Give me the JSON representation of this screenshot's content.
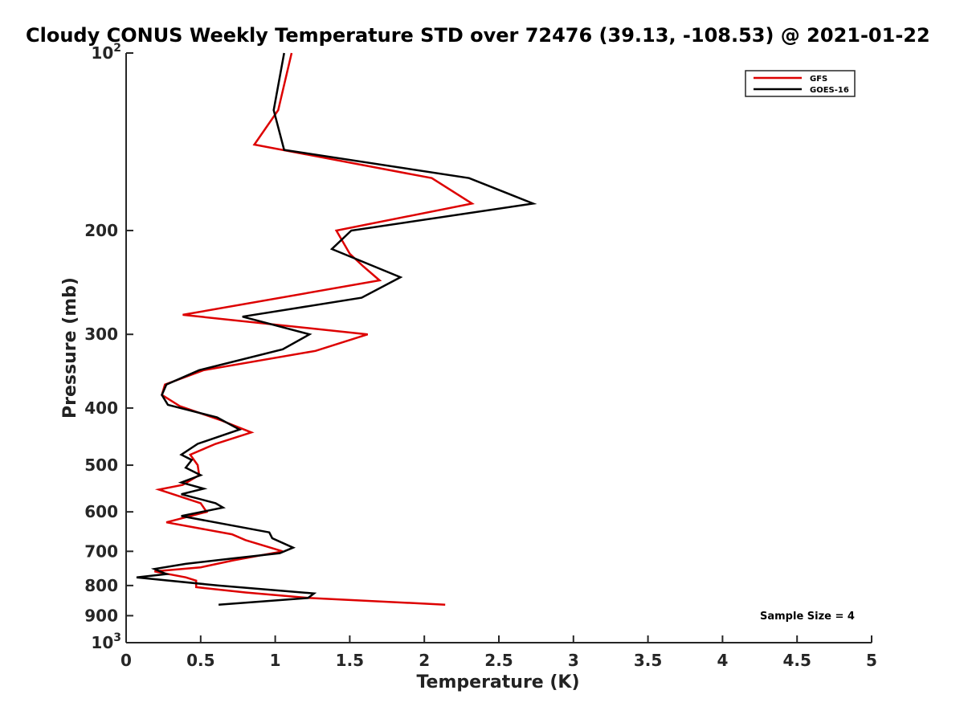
{
  "chart_data": {
    "type": "line",
    "title": "Cloudy CONUS Weekly Temperature STD over 72476 (39.13, -108.53) @ 2021-01-22",
    "xlabel": "Temperature (K)",
    "ylabel": "Pressure (mb)",
    "xlim": [
      0,
      5
    ],
    "ylim": [
      100,
      1000
    ],
    "yscale": "log",
    "y_reversed": true,
    "grid": false,
    "legend_position": "top-right",
    "x_ticks": [
      "0",
      "0.5",
      "1",
      "1.5",
      "2",
      "2.5",
      "3",
      "3.5",
      "4",
      "4.5",
      "5"
    ],
    "y_ticks": [
      {
        "value": 100,
        "label": "10",
        "sup": "2"
      },
      {
        "value": 200,
        "label": "200",
        "sup": ""
      },
      {
        "value": 300,
        "label": "300",
        "sup": ""
      },
      {
        "value": 400,
        "label": "400",
        "sup": ""
      },
      {
        "value": 500,
        "label": "500",
        "sup": ""
      },
      {
        "value": 600,
        "label": "600",
        "sup": ""
      },
      {
        "value": 700,
        "label": "700",
        "sup": ""
      },
      {
        "value": 800,
        "label": "800",
        "sup": ""
      },
      {
        "value": 900,
        "label": "900",
        "sup": ""
      },
      {
        "value": 1000,
        "label": "10",
        "sup": "3"
      }
    ],
    "annotation": "Sample Size = 4",
    "series": [
      {
        "name": "GFS",
        "color": "#dd0000",
        "points": [
          [
            1.11,
            100
          ],
          [
            1.02,
            125
          ],
          [
            0.86,
            143
          ],
          [
            2.05,
            163
          ],
          [
            2.32,
            180
          ],
          [
            1.41,
            200
          ],
          [
            1.5,
            219
          ],
          [
            1.59,
            230
          ],
          [
            1.7,
            243
          ],
          [
            0.38,
            278
          ],
          [
            1.62,
            300
          ],
          [
            1.27,
            320
          ],
          [
            0.52,
            345
          ],
          [
            0.26,
            365
          ],
          [
            0.24,
            380
          ],
          [
            0.36,
            397
          ],
          [
            0.64,
            420
          ],
          [
            0.84,
            440
          ],
          [
            0.6,
            460
          ],
          [
            0.43,
            480
          ],
          [
            0.48,
            500
          ],
          [
            0.49,
            520
          ],
          [
            0.38,
            540
          ],
          [
            0.22,
            550
          ],
          [
            0.5,
            580
          ],
          [
            0.54,
            600
          ],
          [
            0.27,
            625
          ],
          [
            0.71,
            655
          ],
          [
            0.8,
            670
          ],
          [
            1.05,
            700
          ],
          [
            0.72,
            725
          ],
          [
            0.5,
            745
          ],
          [
            0.19,
            757
          ],
          [
            0.4,
            775
          ],
          [
            0.47,
            785
          ],
          [
            0.47,
            805
          ],
          [
            0.8,
            822
          ],
          [
            1.23,
            840
          ],
          [
            2.14,
            862
          ]
        ]
      },
      {
        "name": "GOES-16",
        "color": "#000000",
        "points": [
          [
            1.06,
            100
          ],
          [
            0.99,
            125
          ],
          [
            1.06,
            146
          ],
          [
            2.3,
            163
          ],
          [
            2.73,
            180
          ],
          [
            1.51,
            200
          ],
          [
            1.38,
            215
          ],
          [
            1.84,
            240
          ],
          [
            1.58,
            260
          ],
          [
            0.78,
            280
          ],
          [
            1.23,
            300
          ],
          [
            1.05,
            318
          ],
          [
            0.49,
            345
          ],
          [
            0.27,
            365
          ],
          [
            0.24,
            380
          ],
          [
            0.28,
            395
          ],
          [
            0.61,
            415
          ],
          [
            0.76,
            435
          ],
          [
            0.48,
            460
          ],
          [
            0.37,
            480
          ],
          [
            0.44,
            490
          ],
          [
            0.4,
            505
          ],
          [
            0.5,
            520
          ],
          [
            0.37,
            535
          ],
          [
            0.52,
            548
          ],
          [
            0.37,
            560
          ],
          [
            0.6,
            580
          ],
          [
            0.65,
            590
          ],
          [
            0.37,
            610
          ],
          [
            0.96,
            650
          ],
          [
            0.98,
            665
          ],
          [
            1.12,
            690
          ],
          [
            1.03,
            705
          ],
          [
            0.71,
            720
          ],
          [
            0.4,
            735
          ],
          [
            0.19,
            750
          ],
          [
            0.27,
            765
          ],
          [
            0.07,
            775
          ],
          [
            0.62,
            800
          ],
          [
            1.26,
            825
          ],
          [
            1.22,
            840
          ],
          [
            0.62,
            862
          ]
        ]
      }
    ]
  }
}
